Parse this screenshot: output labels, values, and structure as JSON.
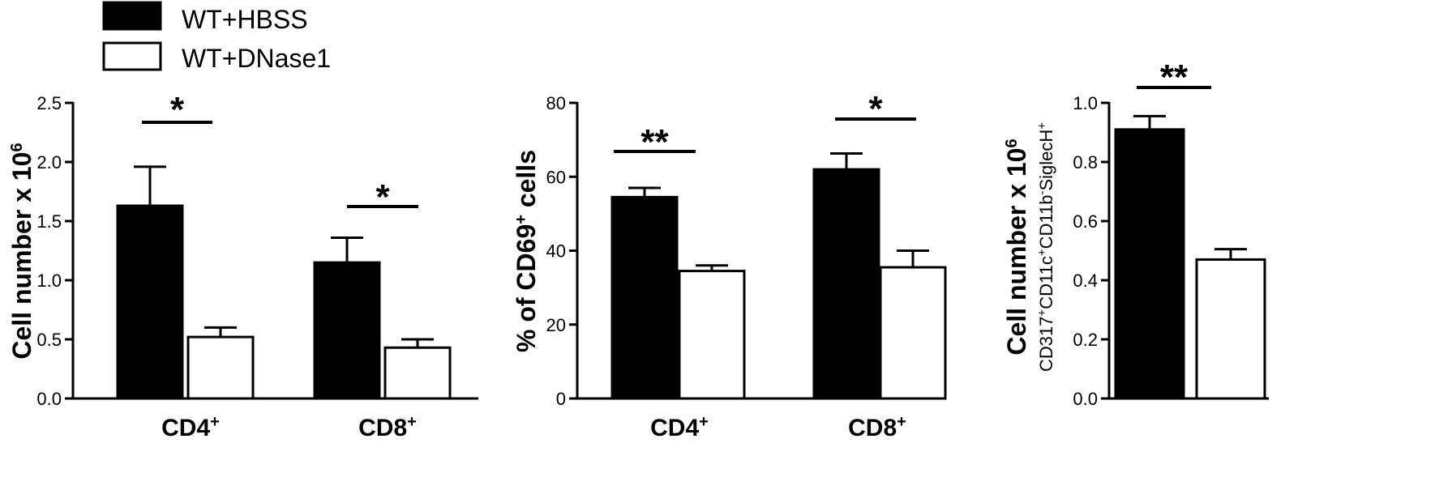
{
  "legend": {
    "items": [
      {
        "label": "WT+HBSS",
        "color": "#000000"
      },
      {
        "label": "WT+DNase1",
        "color": "#ffffff"
      }
    ]
  },
  "chart_data": [
    {
      "type": "bar",
      "ylabel": "Cell number x 10",
      "ylabel_superscript": "6",
      "ylim": [
        0,
        2.5
      ],
      "ticks": [
        "0.0",
        "0.5",
        "1.0",
        "1.5",
        "2.0",
        "2.5"
      ],
      "tick_values": [
        0,
        0.5,
        1.0,
        1.5,
        2.0,
        2.5
      ],
      "categories": [
        "CD4",
        "CD8"
      ],
      "category_superscript": "+",
      "series": [
        {
          "name": "WT+HBSS",
          "values": [
            1.63,
            1.15
          ],
          "errors": [
            0.33,
            0.21
          ]
        },
        {
          "name": "WT+DNase1",
          "values": [
            0.52,
            0.43
          ],
          "errors": [
            0.08,
            0.07
          ]
        }
      ],
      "significance": [
        "*",
        "*"
      ]
    },
    {
      "type": "bar",
      "ylabel": "% of CD69",
      "ylabel_superscript": "+",
      "ylabel_suffix": " cells",
      "ylim": [
        0,
        80
      ],
      "ticks": [
        "0",
        "20",
        "40",
        "60",
        "80"
      ],
      "tick_values": [
        0,
        20,
        40,
        60,
        80
      ],
      "categories": [
        "CD4",
        "CD8"
      ],
      "category_superscript": "+",
      "series": [
        {
          "name": "WT+HBSS",
          "values": [
            54.5,
            62
          ],
          "errors": [
            2.5,
            4.3
          ]
        },
        {
          "name": "WT+DNase1",
          "values": [
            34.5,
            35.5
          ],
          "errors": [
            1.5,
            4.5
          ]
        }
      ],
      "significance": [
        "**",
        "*"
      ]
    },
    {
      "type": "bar",
      "ylabel": "Cell number x 10",
      "ylabel_superscript": "6",
      "ylabel_line2": [
        {
          "t": "CD317",
          "sup": false
        },
        {
          "t": "+",
          "sup": true
        },
        {
          "t": "CD11c",
          "sup": false
        },
        {
          "t": "+",
          "sup": true
        },
        {
          "t": "CD11b",
          "sup": false
        },
        {
          "t": "-",
          "sup": true
        },
        {
          "t": "SiglecH",
          "sup": false
        },
        {
          "t": "+",
          "sup": true
        }
      ],
      "ylim": [
        0,
        1.0
      ],
      "ticks": [
        "0.0",
        "0.2",
        "0.4",
        "0.6",
        "0.8",
        "1.0"
      ],
      "tick_values": [
        0,
        0.2,
        0.4,
        0.6,
        0.8,
        1.0
      ],
      "categories": [
        ""
      ],
      "series": [
        {
          "name": "WT+HBSS",
          "values": [
            0.91
          ],
          "errors": [
            0.045
          ]
        },
        {
          "name": "WT+DNase1",
          "values": [
            0.47
          ],
          "errors": [
            0.035
          ]
        }
      ],
      "significance": [
        "**"
      ]
    }
  ]
}
